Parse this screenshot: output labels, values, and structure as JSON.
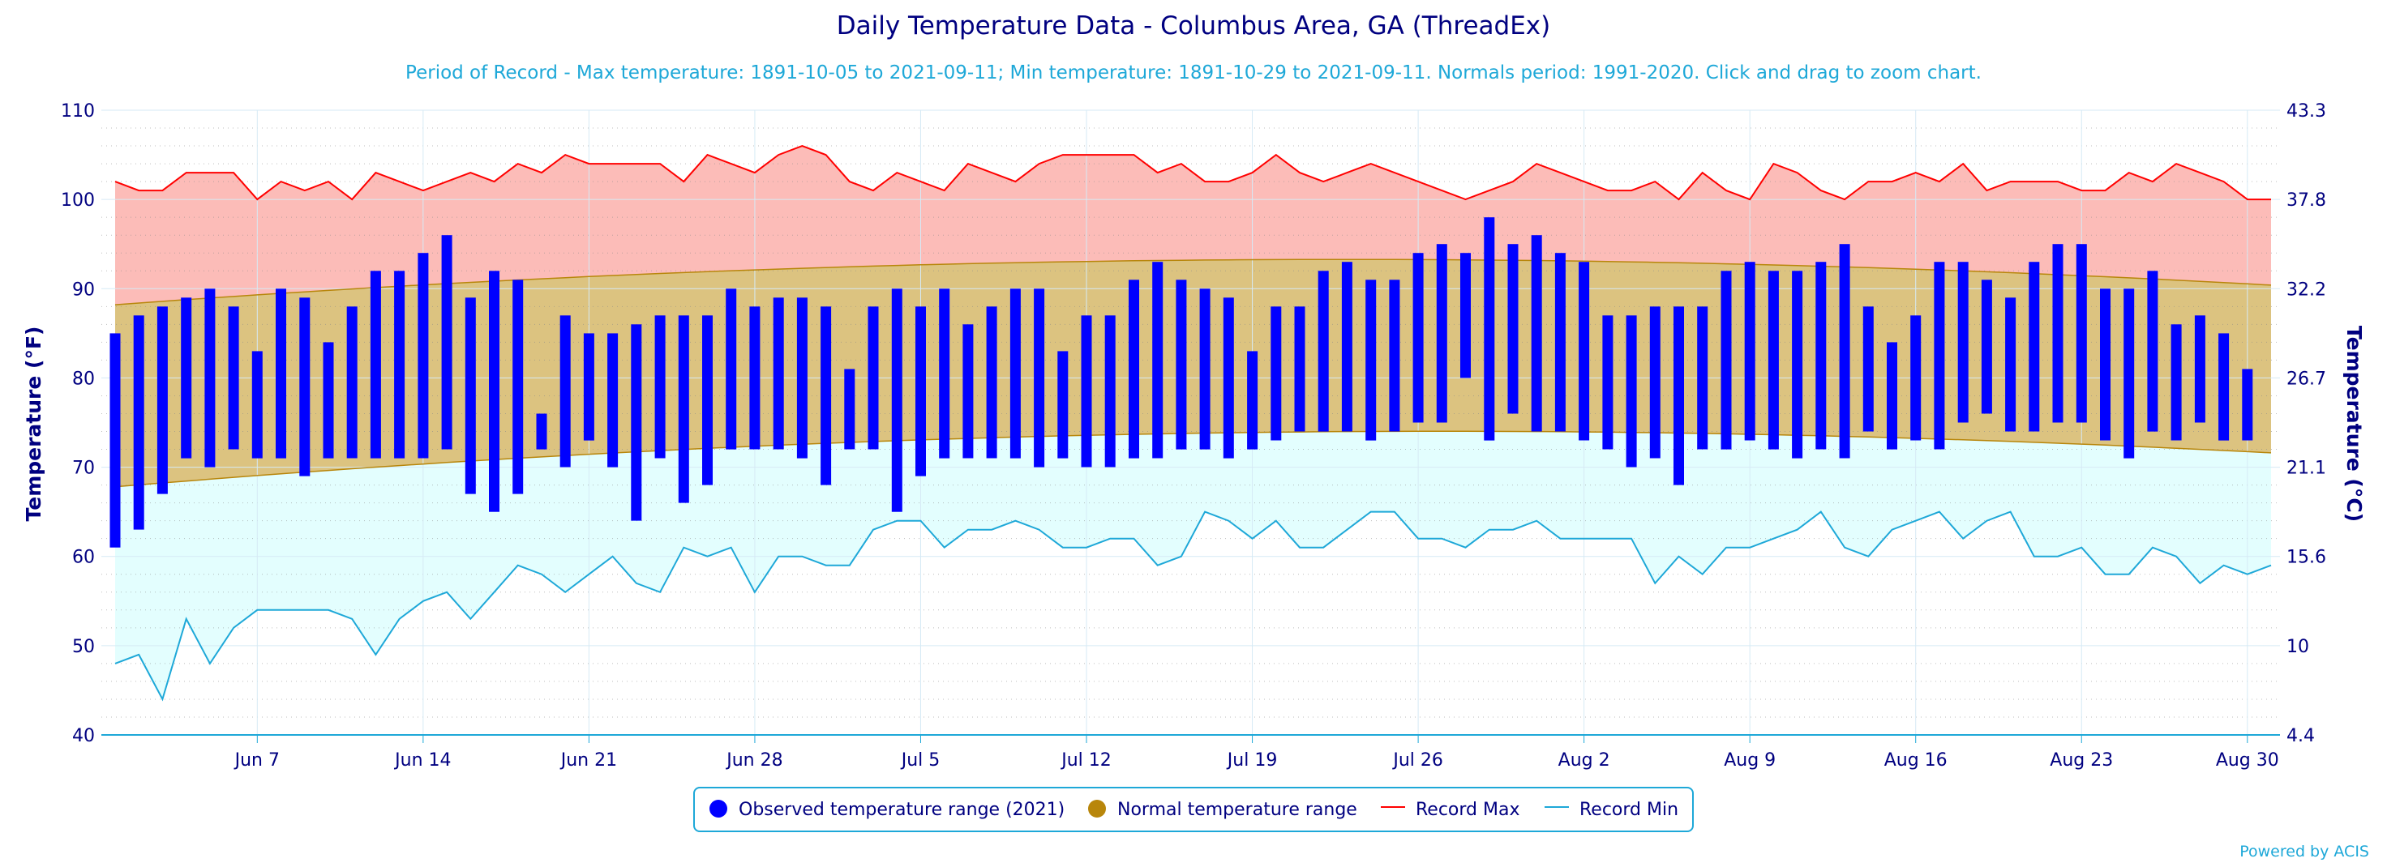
{
  "chart_data": {
    "type": "bar",
    "title": "Daily Temperature Data - Columbus Area, GA (ThreadEx)",
    "subtitle": "Period of Record - Max temperature: 1891-10-05 to 2021-09-11; Min temperature: 1891-10-29 to 2021-09-11. Normals period: 1991-2020. Click and drag to zoom chart.",
    "ylabel": "Temperature (°F)",
    "ylabel_right": "Temperature (°C)",
    "ylim": [
      40,
      110
    ],
    "y_ticks": [
      "40",
      "50",
      "60",
      "70",
      "80",
      "90",
      "100",
      "110"
    ],
    "y_ticks_right": [
      "4.4",
      "10",
      "15.6",
      "21.1",
      "26.7",
      "32.2",
      "37.8",
      "43.3"
    ],
    "x_start": "Jun 1",
    "x_end": "Aug 31",
    "x_ticks": [
      "Jun 7",
      "Jun 14",
      "Jun 21",
      "Jun 28",
      "Jul 5",
      "Jul 12",
      "Jul 19",
      "Jul 26",
      "Aug 2",
      "Aug 9",
      "Aug 16",
      "Aug 23",
      "Aug 30"
    ],
    "grid": true,
    "legend_position": "bottom-center",
    "legend": [
      {
        "label": "Observed temperature range (2021)",
        "symbol": "circle",
        "color": "#0000ff"
      },
      {
        "label": "Normal temperature range",
        "symbol": "circle",
        "color": "#b8860b"
      },
      {
        "label": "Record Max",
        "symbol": "line",
        "color": "#ff0000"
      },
      {
        "label": "Record Min",
        "symbol": "line",
        "color": "#1ea8d8"
      }
    ],
    "series": [
      {
        "name": "Observed temperature range (2021)",
        "type": "columnrange",
        "low": [
          61,
          63,
          67,
          71,
          70,
          72,
          71,
          71,
          69,
          71,
          71,
          71,
          71,
          71,
          72,
          67,
          65,
          67,
          72,
          70,
          73,
          70,
          64,
          71,
          66,
          68,
          72,
          72,
          72,
          71,
          68,
          72,
          72,
          65,
          69,
          71,
          71,
          71,
          71,
          70,
          71,
          70,
          70,
          71,
          71,
          72,
          72,
          71,
          72,
          73,
          74,
          74,
          74,
          73,
          74,
          75,
          75,
          80,
          73,
          76,
          74,
          74,
          73,
          72,
          70,
          71,
          68,
          72,
          72,
          73,
          72,
          71,
          72,
          71,
          74,
          72,
          73,
          72,
          75,
          76,
          74,
          74,
          75,
          75,
          73,
          71,
          74,
          73,
          75,
          73,
          73
        ],
        "high": [
          85,
          87,
          88,
          89,
          90,
          88,
          83,
          90,
          89,
          84,
          88,
          92,
          92,
          94,
          96,
          89,
          92,
          91,
          76,
          87,
          85,
          85,
          86,
          87,
          87,
          87,
          90,
          88,
          89,
          89,
          88,
          81,
          88,
          90,
          88,
          90,
          86,
          88,
          90,
          90,
          83,
          87,
          87,
          91,
          93,
          91,
          90,
          89,
          83,
          88,
          88,
          92,
          93,
          91,
          91,
          94,
          95,
          94,
          98,
          95,
          96,
          94,
          93,
          87,
          87,
          88,
          88,
          88,
          92,
          93,
          92,
          92,
          93,
          95,
          88,
          84,
          87,
          93,
          93,
          91,
          89,
          93,
          95,
          95,
          90,
          90,
          92,
          86,
          87,
          85,
          81
        ]
      },
      {
        "name": "Normal temperature range",
        "type": "arearange",
        "low_start": 67.8,
        "low_mid": 73.8,
        "low_end": 71.6,
        "high_start": 88.2,
        "high_mid": 93.2,
        "high_end": 90.4
      },
      {
        "name": "Record Max",
        "type": "line",
        "color": "#ff0000",
        "values": [
          102,
          101,
          101,
          103,
          103,
          103,
          100,
          102,
          101,
          102,
          100,
          103,
          102,
          101,
          102,
          103,
          102,
          104,
          103,
          105,
          104,
          104,
          104,
          104,
          102,
          105,
          104,
          103,
          105,
          106,
          105,
          102,
          101,
          103,
          102,
          101,
          104,
          103,
          102,
          104,
          105,
          105,
          105,
          105,
          103,
          104,
          102,
          102,
          103,
          105,
          103,
          102,
          103,
          104,
          103,
          102,
          101,
          100,
          101,
          102,
          104,
          103,
          102,
          101,
          101,
          102,
          100,
          103,
          101,
          100,
          104,
          103,
          101,
          100,
          102,
          102,
          103,
          102,
          104,
          101,
          102,
          102,
          102,
          101,
          101,
          103,
          102,
          104,
          103,
          102,
          100,
          100
        ],
        "colors": {
          "area": "#fcbcb8"
        }
      },
      {
        "name": "Record Min",
        "type": "line",
        "color": "#1ea8d8",
        "values": [
          48,
          49,
          44,
          53,
          48,
          52,
          54,
          54,
          54,
          54,
          53,
          49,
          53,
          55,
          56,
          53,
          56,
          59,
          58,
          56,
          58,
          60,
          57,
          56,
          61,
          60,
          61,
          56,
          60,
          60,
          59,
          59,
          63,
          64,
          64,
          61,
          63,
          63,
          64,
          63,
          61,
          61,
          62,
          62,
          59,
          60,
          65,
          64,
          62,
          64,
          61,
          61,
          63,
          65,
          65,
          62,
          62,
          61,
          63,
          63,
          64,
          62,
          62,
          62,
          62,
          57,
          60,
          58,
          61,
          61,
          62,
          63,
          65,
          61,
          60,
          63,
          64,
          65,
          62,
          64,
          65,
          60,
          60,
          61,
          58,
          58,
          61,
          60,
          57,
          59,
          58,
          59
        ]
      }
    ],
    "credit": "Powered by ACIS"
  },
  "colors": {
    "observed": "#0000ff",
    "normal_fill": "#dcc380",
    "normal_line": "#b8860b",
    "record_max": "#ff0000",
    "record_max_fill": "#fcbcb8",
    "record_min": "#1ea8d8",
    "record_min_fill": "#e3fefe",
    "axis_text": "#000080",
    "grid": "#d6eaf5",
    "dotted_grid": "#8a8a8a"
  }
}
